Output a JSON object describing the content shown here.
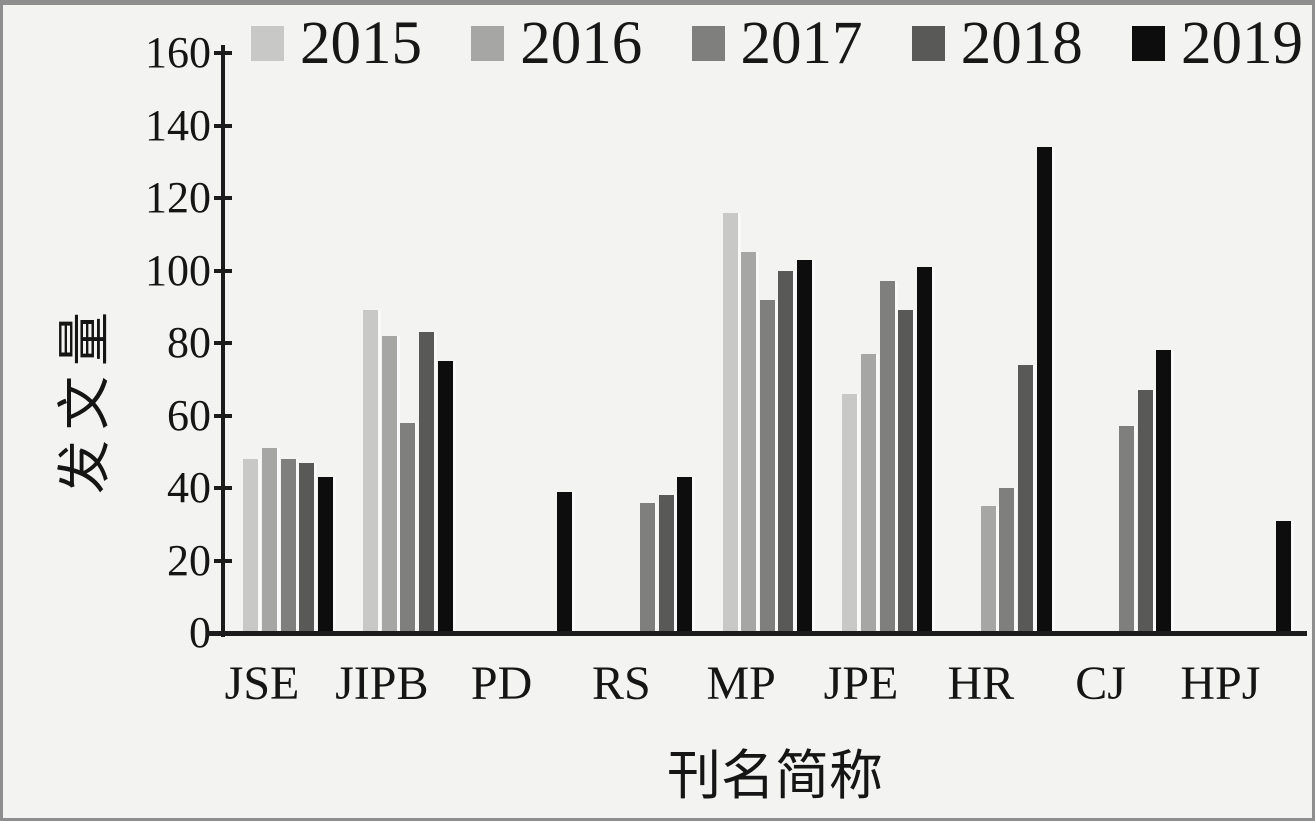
{
  "chart_data": {
    "type": "bar",
    "title": "",
    "xlabel": "刊名简称",
    "ylabel": "发文量",
    "ylim": [
      0,
      160
    ],
    "ytick_step": 20,
    "yticks": [
      0,
      20,
      40,
      60,
      80,
      100,
      120,
      140,
      160
    ],
    "grid": false,
    "legend_position": "top",
    "categories": [
      "JSE",
      "JIPB",
      "PD",
      "RS",
      "MP",
      "JPE",
      "HR",
      "CJ",
      "HPJ"
    ],
    "series": [
      {
        "name": "2015",
        "color": "#c8c8c7",
        "values": [
          48,
          89,
          null,
          null,
          116,
          66,
          null,
          null,
          null
        ]
      },
      {
        "name": "2016",
        "color": "#a6a6a5",
        "values": [
          51,
          82,
          null,
          null,
          105,
          77,
          35,
          null,
          null
        ]
      },
      {
        "name": "2017",
        "color": "#7f7f7e",
        "values": [
          48,
          58,
          null,
          36,
          92,
          97,
          40,
          57,
          null
        ]
      },
      {
        "name": "2018",
        "color": "#595958",
        "values": [
          47,
          83,
          null,
          38,
          100,
          89,
          74,
          67,
          null
        ]
      },
      {
        "name": "2019",
        "color": "#0d0d0d",
        "values": [
          43,
          75,
          39,
          43,
          103,
          101,
          134,
          78,
          31
        ]
      }
    ]
  }
}
